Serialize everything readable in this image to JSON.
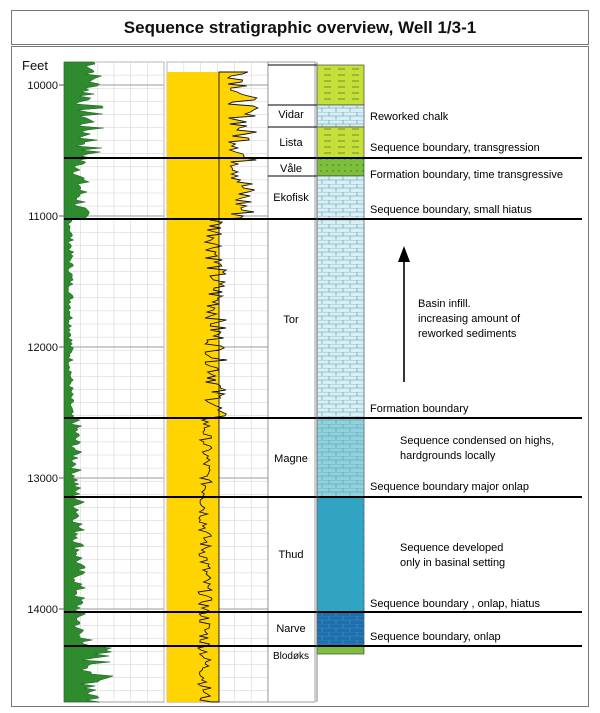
{
  "title": "Sequence stratigraphic overview, Well 1/3-1",
  "depth_axis": {
    "unit_label": "Feet",
    "ticks": [
      "10000",
      "11000",
      "12000",
      "13000",
      "14000"
    ]
  },
  "formations": [
    {
      "name": "Vidar"
    },
    {
      "name": "Lista"
    },
    {
      "name": "Våle"
    },
    {
      "name": "Ekofisk"
    },
    {
      "name": "Tor"
    },
    {
      "name": "Magne"
    },
    {
      "name": "Thud"
    },
    {
      "name": "Narve"
    },
    {
      "name": "Blodøks"
    }
  ],
  "annotations": [
    "Reworked chalk",
    "Sequence boundary, transgression",
    "Formation boundary, time transgressive",
    "Sequence boundary, small hiatus",
    "Formation boundary",
    "Sequence boundary major onlap",
    "Sequence boundary , onlap, hiatus",
    "Sequence boundary, onlap"
  ],
  "notes": [
    [
      "Basin infill.",
      "increasing amount of",
      "reworked sediments"
    ],
    [
      "Sequence condensed on highs,",
      "hardgrounds locally"
    ],
    [
      "Sequence developed",
      "only in basinal setting"
    ]
  ],
  "colors": {
    "gamma_fill": "#2e8b2e",
    "sonic_fill": "#ffd400",
    "chalk_light": "#d8f0f5",
    "chalk_mid": "#8fd3dc",
    "chalk_dark": "#2aa6c6",
    "chalk_darkest": "#1a6fb0",
    "marl_green": "#c6e03a",
    "shale_green": "#7cbf3a"
  }
}
